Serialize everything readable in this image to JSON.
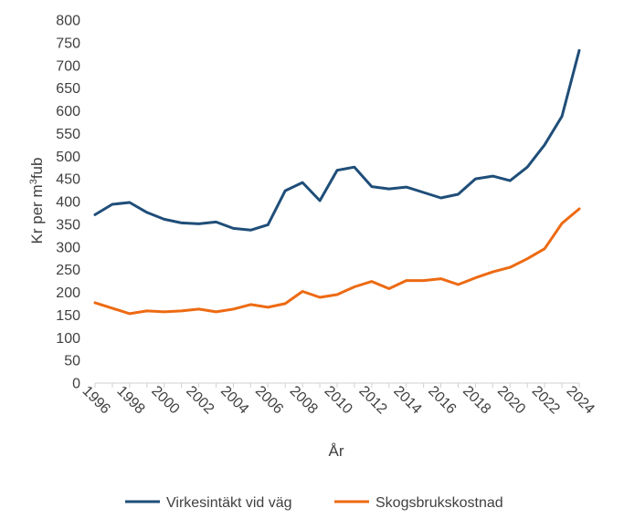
{
  "chart_data": {
    "type": "line",
    "xlabel": "År",
    "ylabel_main": "Kr per m",
    "ylabel_sup": "3",
    "ylabel_tail": "fub",
    "ylim": [
      0,
      800
    ],
    "ytick_step": 50,
    "yticks": [
      "0",
      "50",
      "100",
      "150",
      "200",
      "250",
      "300",
      "350",
      "400",
      "450",
      "500",
      "550",
      "600",
      "650",
      "700",
      "750",
      "800"
    ],
    "xlim": [
      1996,
      2024
    ],
    "xtick_labels": [
      "1996",
      "1998",
      "2000",
      "2002",
      "2004",
      "2006",
      "2008",
      "2010",
      "2012",
      "2014",
      "2016",
      "2018",
      "2020",
      "2022",
      "2024"
    ],
    "grid": false,
    "legend_position": "bottom",
    "x": [
      1996,
      1997,
      1998,
      1999,
      2000,
      2001,
      2002,
      2003,
      2004,
      2005,
      2006,
      2007,
      2008,
      2009,
      2010,
      2011,
      2012,
      2013,
      2014,
      2015,
      2016,
      2017,
      2018,
      2019,
      2020,
      2021,
      2022,
      2023,
      2024
    ],
    "series": [
      {
        "name": "Virkesintäkt vid väg",
        "color": "#1f4e79",
        "values": [
          371,
          394,
          398,
          376,
          361,
          353,
          351,
          355,
          341,
          337,
          349,
          424,
          442,
          402,
          469,
          476,
          433,
          428,
          432,
          420,
          408,
          416,
          450,
          456,
          446,
          476,
          525,
          588,
          733
        ]
      },
      {
        "name": "Skogsbrukskostnad",
        "color": "#ed6a12",
        "values": [
          177,
          165,
          153,
          159,
          157,
          159,
          163,
          157,
          163,
          173,
          167,
          175,
          202,
          189,
          195,
          212,
          224,
          208,
          226,
          226,
          230,
          217,
          232,
          245,
          255,
          274,
          296,
          352,
          384
        ]
      }
    ]
  }
}
